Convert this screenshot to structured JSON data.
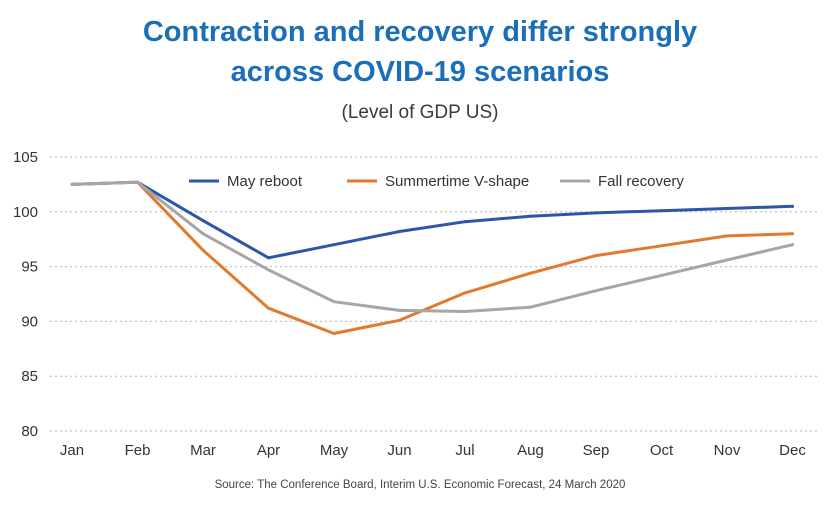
{
  "chart_data": {
    "type": "line",
    "title": "Contraction and recovery differ strongly across COVID-19 scenarios",
    "title_lines": [
      "Contraction and recovery differ strongly",
      "across COVID-19 scenarios"
    ],
    "subtitle": "(Level of GDP US)",
    "source": "Source: The Conference Board, Interim U.S. Economic Forecast, 24 March 2020",
    "categories": [
      "Jan",
      "Feb",
      "Mar",
      "Apr",
      "May",
      "Jun",
      "Jul",
      "Aug",
      "Sep",
      "Oct",
      "Nov",
      "Dec"
    ],
    "ylim": [
      80,
      105
    ],
    "yticks": [
      80,
      85,
      90,
      95,
      100,
      105
    ],
    "grid": true,
    "legend_position": "top",
    "series": [
      {
        "name": "May reboot",
        "color": "#2e56a6",
        "values": [
          102.5,
          102.7,
          99.2,
          95.8,
          97.0,
          98.2,
          99.1,
          99.6,
          99.9,
          100.1,
          100.3,
          100.5
        ]
      },
      {
        "name": "Summertime V-shape",
        "color": "#e07a2e",
        "values": [
          102.5,
          102.7,
          96.5,
          91.2,
          88.9,
          90.1,
          92.6,
          94.4,
          96.0,
          96.9,
          97.8,
          98.0
        ]
      },
      {
        "name": "Fall recovery",
        "color": "#a6a6a6",
        "values": [
          102.5,
          102.7,
          98.0,
          94.7,
          91.8,
          91.0,
          90.9,
          91.3,
          92.8,
          94.2,
          95.6,
          97.0
        ]
      }
    ]
  }
}
